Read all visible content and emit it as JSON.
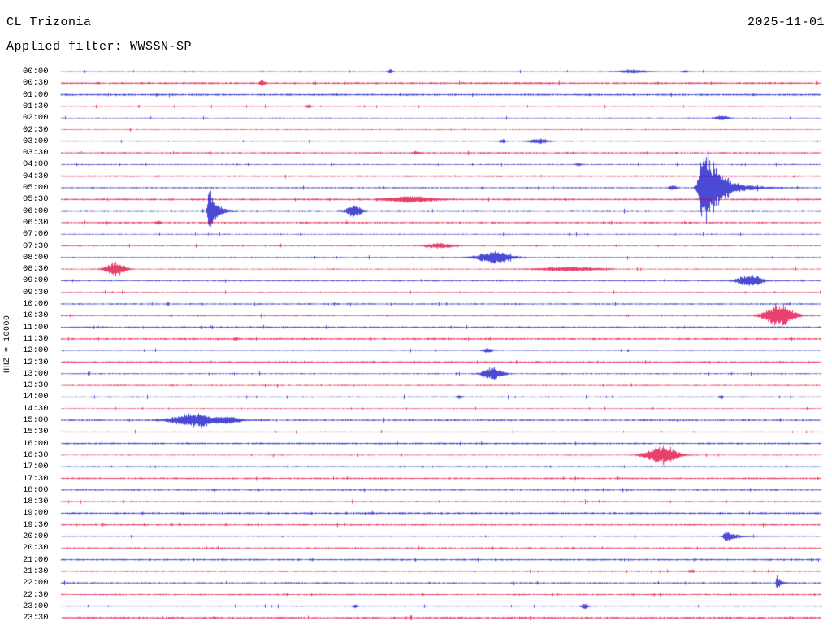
{
  "header": {
    "station": "CL Trizonia",
    "date": "2025-11-01",
    "filter_line": "Applied filter: WWSSN-SP"
  },
  "axis": {
    "left_label": "HHZ = 10000"
  },
  "chart_data": {
    "type": "line",
    "subtype": "helicorder-seismogram",
    "title": "CL Trizonia helicorder 2025-11-01",
    "station": "CL Trizonia",
    "channel_scale_label": "HHZ = 10000",
    "date": "2025-11-01",
    "filter": "WWSSN-SP",
    "rows": 48,
    "minutes_per_row": 30,
    "background": "#ffffff",
    "trace_colors": [
      "#0d0dc6",
      "#e0003c"
    ],
    "row_labels": [
      "00:00",
      "00:30",
      "01:00",
      "01:30",
      "02:00",
      "02:30",
      "03:00",
      "03:30",
      "04:00",
      "04:30",
      "05:00",
      "05:30",
      "06:00",
      "06:30",
      "07:00",
      "07:30",
      "08:00",
      "08:30",
      "09:00",
      "09:30",
      "10:00",
      "10:30",
      "11:00",
      "11:30",
      "12:00",
      "12:30",
      "13:00",
      "13:30",
      "14:00",
      "14:30",
      "15:00",
      "15:30",
      "16:00",
      "16:30",
      "17:00",
      "17:30",
      "18:00",
      "18:30",
      "19:00",
      "19:30",
      "20:00",
      "20:30",
      "21:00",
      "21:30",
      "22:00",
      "22:30",
      "23:00",
      "23:30"
    ],
    "events": [
      {
        "row": 0,
        "x": 0.433,
        "amp": 3,
        "w": 0.004,
        "shape": "spike"
      },
      {
        "row": 0,
        "x": 0.752,
        "amp": 2.2,
        "w": 0.014,
        "shape": "spindle"
      },
      {
        "row": 0,
        "x": 0.821,
        "amp": 2,
        "w": 0.005,
        "shape": "spike"
      },
      {
        "row": 1,
        "x": 0.264,
        "amp": 4.5,
        "w": 0.0035,
        "shape": "spike"
      },
      {
        "row": 3,
        "x": 0.326,
        "amp": 2.5,
        "w": 0.004,
        "shape": "spike"
      },
      {
        "row": 4,
        "x": 0.87,
        "amp": 3,
        "w": 0.007,
        "shape": "spindle"
      },
      {
        "row": 6,
        "x": 0.581,
        "amp": 2.5,
        "w": 0.005,
        "shape": "spike"
      },
      {
        "row": 6,
        "x": 0.629,
        "amp": 3.5,
        "w": 0.009,
        "shape": "spindle"
      },
      {
        "row": 7,
        "x": 0.467,
        "amp": 2.2,
        "w": 0.005,
        "shape": "spike"
      },
      {
        "row": 8,
        "x": 0.681,
        "amp": 2,
        "w": 0.004,
        "shape": "spike"
      },
      {
        "row": 10,
        "x": 0.805,
        "amp": 3,
        "w": 0.006,
        "shape": "spike"
      },
      {
        "row": 10,
        "x": 0.846,
        "amp": 62,
        "w": 0.02,
        "shape": "quake"
      },
      {
        "row": 11,
        "x": 0.46,
        "amp": 4,
        "w": 0.022,
        "shape": "spindle"
      },
      {
        "row": 12,
        "x": 0.195,
        "amp": 36,
        "w": 0.008,
        "shape": "quake"
      },
      {
        "row": 12,
        "x": 0.386,
        "amp": 8.5,
        "w": 0.007,
        "shape": "spindle"
      },
      {
        "row": 13,
        "x": 0.128,
        "amp": 2,
        "w": 0.004,
        "shape": "spike"
      },
      {
        "row": 15,
        "x": 0.498,
        "amp": 3.5,
        "w": 0.012,
        "shape": "spindle"
      },
      {
        "row": 16,
        "x": 0.57,
        "amp": 8,
        "w": 0.016,
        "shape": "spindle"
      },
      {
        "row": 17,
        "x": 0.071,
        "amp": 10,
        "w": 0.009,
        "shape": "spindle"
      },
      {
        "row": 17,
        "x": 0.668,
        "amp": 3,
        "w": 0.028,
        "shape": "spindle"
      },
      {
        "row": 18,
        "x": 0.906,
        "amp": 8,
        "w": 0.011,
        "shape": "spindle"
      },
      {
        "row": 21,
        "x": 0.945,
        "amp": 15,
        "w": 0.013,
        "shape": "spindle"
      },
      {
        "row": 23,
        "x": 0.23,
        "amp": 2,
        "w": 0.004,
        "shape": "spike"
      },
      {
        "row": 24,
        "x": 0.561,
        "amp": 3,
        "w": 0.005,
        "shape": "spindle"
      },
      {
        "row": 26,
        "x": 0.568,
        "amp": 9,
        "w": 0.009,
        "shape": "spindle"
      },
      {
        "row": 28,
        "x": 0.524,
        "amp": 2.3,
        "w": 0.004,
        "shape": "spike"
      },
      {
        "row": 28,
        "x": 0.869,
        "amp": 2.3,
        "w": 0.004,
        "shape": "spike"
      },
      {
        "row": 30,
        "x": 0.176,
        "amp": 10,
        "w": 0.02,
        "shape": "spindle"
      },
      {
        "row": 30,
        "x": 0.222,
        "amp": 4,
        "w": 0.01,
        "shape": "spindle"
      },
      {
        "row": 33,
        "x": 0.791,
        "amp": 14,
        "w": 0.014,
        "shape": "spindle"
      },
      {
        "row": 40,
        "x": 0.875,
        "amp": 8,
        "w": 0.012,
        "shape": "quake"
      },
      {
        "row": 43,
        "x": 0.829,
        "amp": 2,
        "w": 0.004,
        "shape": "spike"
      },
      {
        "row": 44,
        "x": 0.942,
        "amp": 11,
        "w": 0.004,
        "shape": "quake"
      },
      {
        "row": 46,
        "x": 0.387,
        "amp": 2.5,
        "w": 0.004,
        "shape": "spike"
      },
      {
        "row": 46,
        "x": 0.689,
        "amp": 4.5,
        "w": 0.005,
        "shape": "spike"
      }
    ]
  }
}
